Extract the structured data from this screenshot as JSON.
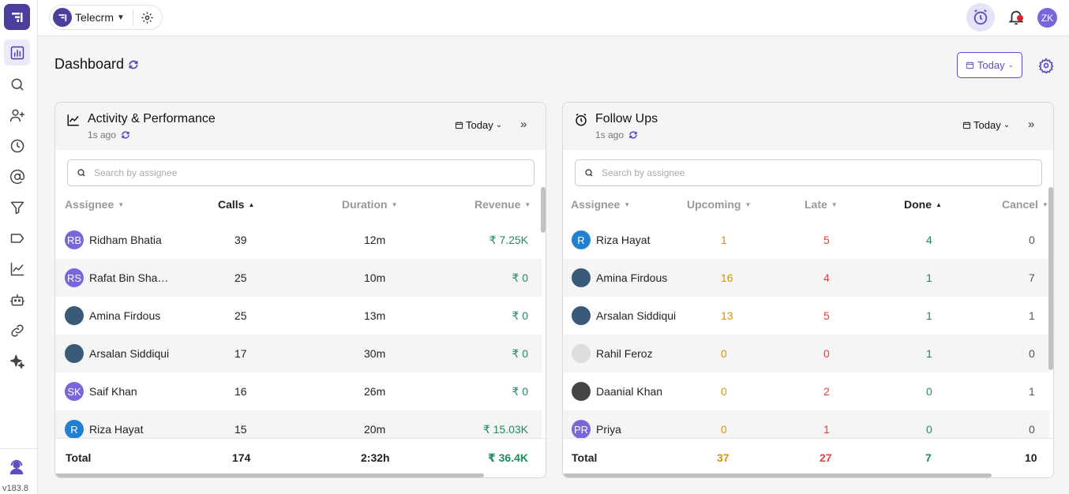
{
  "sidebar": {
    "items": [
      "analytics-icon",
      "search-icon",
      "add-user-icon",
      "history-icon",
      "at-icon",
      "filter-icon",
      "tag-icon",
      "trend-icon",
      "bot-icon",
      "link-icon",
      "sparkle-icon"
    ],
    "version": "v183.8"
  },
  "topbar": {
    "workspace_name": "Telecrm",
    "avatar_initials": "ZK"
  },
  "dashboard": {
    "title": "Dashboard",
    "range_label": "Today"
  },
  "activity": {
    "title": "Activity & Performance",
    "updated": "1s ago",
    "range_label": "Today",
    "search_placeholder": "Search by assignee",
    "columns": [
      "Assignee",
      "Calls",
      "Duration",
      "Revenue"
    ],
    "rows": [
      {
        "initials": "RB",
        "avatar": "purple",
        "name": "Ridham Bhatia",
        "calls": "39",
        "duration": "12m",
        "revenue": "₹ 7.25K"
      },
      {
        "initials": "RS",
        "avatar": "purple",
        "name": "Rafat Bin Sha…",
        "calls": "25",
        "duration": "10m",
        "revenue": "₹ 0"
      },
      {
        "initials": "",
        "avatar": "photo",
        "name": "Amina Firdous",
        "calls": "25",
        "duration": "13m",
        "revenue": "₹ 0"
      },
      {
        "initials": "",
        "avatar": "photo",
        "name": "Arsalan Siddiqui",
        "calls": "17",
        "duration": "30m",
        "revenue": "₹ 0"
      },
      {
        "initials": "SK",
        "avatar": "purple",
        "name": "Saif Khan",
        "calls": "16",
        "duration": "26m",
        "revenue": "₹ 0"
      },
      {
        "initials": "R",
        "avatar": "blue",
        "name": "Riza Hayat",
        "calls": "15",
        "duration": "20m",
        "revenue": "₹ 15.03K"
      }
    ],
    "total": {
      "label": "Total",
      "calls": "174",
      "duration": "2:32h",
      "revenue": "₹ 36.4K"
    }
  },
  "followups": {
    "title": "Follow Ups",
    "updated": "1s ago",
    "range_label": "Today",
    "search_placeholder": "Search by assignee",
    "columns": [
      "Assignee",
      "Upcoming",
      "Late",
      "Done",
      "Cancel"
    ],
    "rows": [
      {
        "initials": "R",
        "avatar": "blue",
        "name": "Riza Hayat",
        "upcoming": "1",
        "late": "5",
        "done": "4",
        "cancel": "0"
      },
      {
        "initials": "",
        "avatar": "photo",
        "name": "Amina Firdous",
        "upcoming": "16",
        "late": "4",
        "done": "1",
        "cancel": "7"
      },
      {
        "initials": "",
        "avatar": "photo",
        "name": "Arsalan Siddiqui",
        "upcoming": "13",
        "late": "5",
        "done": "1",
        "cancel": "1"
      },
      {
        "initials": "",
        "avatar": "gray",
        "name": "Rahil Feroz",
        "upcoming": "0",
        "late": "0",
        "done": "1",
        "cancel": "0"
      },
      {
        "initials": "",
        "avatar": "dark",
        "name": "Daanial Khan",
        "upcoming": "0",
        "late": "2",
        "done": "0",
        "cancel": "1"
      },
      {
        "initials": "PR",
        "avatar": "purple",
        "name": "Priya",
        "upcoming": "0",
        "late": "1",
        "done": "0",
        "cancel": "0"
      }
    ],
    "total": {
      "label": "Total",
      "upcoming": "37",
      "late": "27",
      "done": "7",
      "cancel": "10"
    }
  }
}
